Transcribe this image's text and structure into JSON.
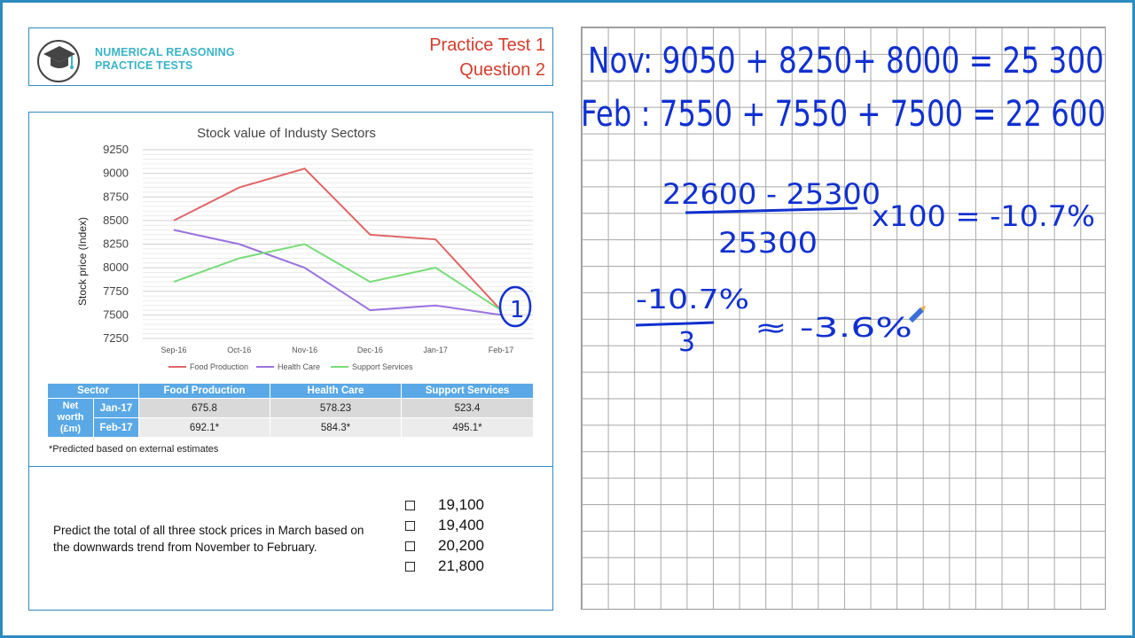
{
  "header": {
    "brand_line1": "NUMERICAL REASONING",
    "brand_line2": "PRACTICE TESTS",
    "test_title": "Practice Test 1",
    "question_title": "Question 2"
  },
  "chart_data": {
    "type": "line",
    "title": "Stock value of Industy Sectors",
    "ylabel": "Stock price (Index)",
    "xlabel": "",
    "ylim": [
      7250,
      9250
    ],
    "yticks": [
      7250,
      7500,
      7750,
      8000,
      8250,
      8500,
      8750,
      9000,
      9250
    ],
    "categories": [
      "Sep-16",
      "Oct-16",
      "Nov-16",
      "Dec-16",
      "Jan-17",
      "Feb-17"
    ],
    "grid": true,
    "legend": "bottom",
    "series": [
      {
        "name": "Food Production",
        "color": "#e06666",
        "values": [
          8500,
          8850,
          9050,
          8350,
          8300,
          7550
        ]
      },
      {
        "name": "Health Care",
        "color": "#9b72e0",
        "values": [
          8400,
          8250,
          8000,
          7550,
          7600,
          7500
        ]
      },
      {
        "name": "Support Services",
        "color": "#77dd77",
        "values": [
          7850,
          8100,
          8250,
          7850,
          8000,
          7550
        ]
      }
    ]
  },
  "table": {
    "headers": [
      "Sector",
      "Food Production",
      "Health Care",
      "Support Services"
    ],
    "row_group_label": "Net worth (£m)",
    "row_group_lines": [
      "Net",
      "worth",
      "(£m)"
    ],
    "rows": [
      {
        "label": "Jan-17",
        "values": [
          "675.8",
          "578.23",
          "523.4"
        ]
      },
      {
        "label": "Feb-17",
        "values": [
          "692.1*",
          "584.3*",
          "495.1*"
        ]
      }
    ],
    "footnote": "*Predicted based on external estimates"
  },
  "question": {
    "text": "Predict the total of all three stock prices in March based on the downwards trend from November to February.",
    "options": [
      "19,100",
      "19,400",
      "20,200",
      "21,800"
    ]
  },
  "notes": {
    "line1": "Nov:   9050 + 8250+ 8000 = 25 300",
    "line2": "Feb :   7550 + 7550 + 7500 = 22 600",
    "fraction_numerator": "22600 - 25300",
    "fraction_denominator": "25300",
    "fraction_result": "x100 = -10.7%",
    "division_numerator": "-10.7%",
    "division_denominator": "3",
    "division_result": "≈  -3.6%"
  },
  "colors": {
    "frame": "#2e8bc0",
    "brand": "#3ab3c7",
    "title_red": "#d43c2c",
    "ink": "#1030d0",
    "table_header": "#5aa9e6"
  }
}
